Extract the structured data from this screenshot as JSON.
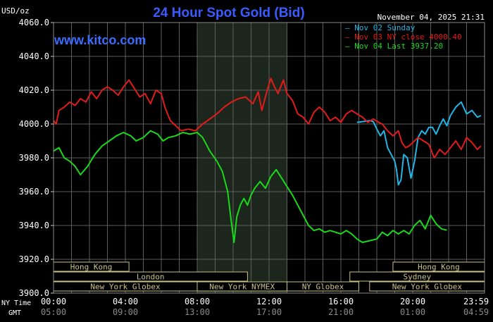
{
  "header": {
    "unit": "USD/oz",
    "title": "24 Hour Spot Gold (Bid)",
    "timestamp": "November 04, 2025 21:31",
    "watermark": "www.kitco.com"
  },
  "colors": {
    "background": "#000000",
    "grid": "#6a6a6a",
    "title": "#3a5cff",
    "watermark": "#3a6cff",
    "sunday": "#21b6e8",
    "ny_close": "#e21b1b",
    "last": "#19d91a",
    "session_fill": "#1f2a1f",
    "market_box_fill": "#c9c389",
    "market_box_text": "#000000"
  },
  "legend": [
    {
      "label": "Nov 02 Sunday",
      "color": "#21b6e8"
    },
    {
      "label": "Nov 03 NY close 4000.40",
      "color": "#e21b1b"
    },
    {
      "label": "Nov 04 Last 3937.20",
      "color": "#19d91a"
    }
  ],
  "row_labels": {
    "ny": "NY Time",
    "gmt": "GMT"
  },
  "x_ticks_ny": [
    "00:00",
    "04:00",
    "08:00",
    "12:00",
    "16:00",
    "20:00",
    "23:59"
  ],
  "x_ticks_gmt": [
    "05:00",
    "09:00",
    "13:00",
    "17:00",
    "21:00",
    "01:00",
    "04:59"
  ],
  "markets": [
    {
      "label": "Hong Kong",
      "start": 0,
      "end": 4.2,
      "row": 0
    },
    {
      "label": "Hong Kong",
      "start": 18.9,
      "end": 24,
      "row": 0
    },
    {
      "label": "London",
      "start": 0,
      "end": 10.8,
      "row": 1
    },
    {
      "label": "Sydney",
      "start": 16.5,
      "end": 24,
      "row": 1
    },
    {
      "label": "New York Globex",
      "start": 0,
      "end": 8.0,
      "row": 2
    },
    {
      "label": "New York NYMEX",
      "start": 8.0,
      "end": 13.0,
      "row": 2
    },
    {
      "label": "NY Globex",
      "start": 13.0,
      "end": 17.0,
      "row": 2
    },
    {
      "label": "New York Globex",
      "start": 17.6,
      "end": 24,
      "row": 2
    }
  ],
  "chart_data": {
    "type": "line",
    "ylabel": "USD/oz",
    "ylim": [
      3900,
      4060
    ],
    "xlim": [
      0,
      24
    ],
    "y_ticks": [
      "4060.0",
      "4040.0",
      "4020.0",
      "4000.0",
      "3980.0",
      "3960.0",
      "3940.0",
      "3920.0",
      "3900.0"
    ],
    "shaded_session_hours": [
      8.0,
      13.0
    ],
    "grid": true,
    "series": [
      {
        "name": "Nov 02 Sunday",
        "color": "#21b6e8",
        "points": [
          [
            16.9,
            4001.0
          ],
          [
            17.6,
            4002.0
          ],
          [
            17.8,
            4001.5
          ],
          [
            18.0,
            3997.0
          ],
          [
            18.2,
            3993.0
          ],
          [
            18.4,
            3996.0
          ],
          [
            18.6,
            3986.0
          ],
          [
            18.8,
            3982.0
          ],
          [
            19.0,
            3978.0
          ],
          [
            19.1,
            3973.0
          ],
          [
            19.2,
            3964.0
          ],
          [
            19.35,
            3967.0
          ],
          [
            19.5,
            3982.0
          ],
          [
            19.7,
            3980.0
          ],
          [
            19.9,
            3968.0
          ],
          [
            20.1,
            3978.0
          ],
          [
            20.3,
            3992.0
          ],
          [
            20.5,
            3996.0
          ],
          [
            20.7,
            3994.0
          ],
          [
            20.9,
            3998.0
          ],
          [
            21.1,
            3998.0
          ],
          [
            21.3,
            3994.0
          ],
          [
            21.5,
            3999.0
          ],
          [
            21.7,
            4003.0
          ],
          [
            21.9,
            3999.0
          ],
          [
            22.1,
            4005.0
          ],
          [
            22.4,
            4010.0
          ],
          [
            22.7,
            4013.0
          ],
          [
            23.0,
            4006.0
          ],
          [
            23.3,
            4008.0
          ],
          [
            23.6,
            4004.0
          ],
          [
            23.8,
            4005.0
          ]
        ]
      },
      {
        "name": "Nov 03 NY close 4000.40",
        "color": "#e21b1b",
        "points": [
          [
            0.0,
            4002.0
          ],
          [
            0.15,
            4000.0
          ],
          [
            0.3,
            4008.0
          ],
          [
            0.6,
            4010.0
          ],
          [
            0.9,
            4013.0
          ],
          [
            1.2,
            4011.0
          ],
          [
            1.5,
            4015.0
          ],
          [
            1.8,
            4013.0
          ],
          [
            2.1,
            4019.0
          ],
          [
            2.4,
            4015.0
          ],
          [
            2.7,
            4020.0
          ],
          [
            3.0,
            4022.0
          ],
          [
            3.3,
            4020.0
          ],
          [
            3.6,
            4017.0
          ],
          [
            3.9,
            4022.0
          ],
          [
            4.2,
            4026.0
          ],
          [
            4.5,
            4021.0
          ],
          [
            4.8,
            4016.0
          ],
          [
            5.1,
            4018.0
          ],
          [
            5.4,
            4012.0
          ],
          [
            5.7,
            4020.0
          ],
          [
            6.0,
            4018.0
          ],
          [
            6.2,
            4010.0
          ],
          [
            6.5,
            4002.0
          ],
          [
            6.8,
            3999.0
          ],
          [
            7.1,
            3996.0
          ],
          [
            7.5,
            3997.0
          ],
          [
            7.9,
            3996.0
          ],
          [
            8.3,
            4000.0
          ],
          [
            8.7,
            4003.0
          ],
          [
            9.1,
            4006.0
          ],
          [
            9.5,
            4010.0
          ],
          [
            9.9,
            4013.0
          ],
          [
            10.3,
            4015.0
          ],
          [
            10.7,
            4016.0
          ],
          [
            11.1,
            4012.0
          ],
          [
            11.4,
            4019.0
          ],
          [
            11.6,
            4008.0
          ],
          [
            11.9,
            4020.0
          ],
          [
            12.1,
            4027.0
          ],
          [
            12.3,
            4022.0
          ],
          [
            12.5,
            4018.0
          ],
          [
            12.8,
            4026.0
          ],
          [
            13.0,
            4018.0
          ],
          [
            13.3,
            4014.0
          ],
          [
            13.6,
            4006.0
          ],
          [
            13.9,
            4004.0
          ],
          [
            14.2,
            4000.0
          ],
          [
            14.5,
            4007.0
          ],
          [
            14.8,
            4010.0
          ],
          [
            15.1,
            4007.0
          ],
          [
            15.4,
            4002.0
          ],
          [
            15.7,
            4004.0
          ],
          [
            16.0,
            4001.0
          ],
          [
            16.3,
            4006.0
          ],
          [
            16.6,
            4008.0
          ],
          [
            16.9,
            4006.0
          ],
          [
            17.2,
            4004.0
          ],
          [
            17.5,
            4001.0
          ],
          [
            17.8,
            4003.0
          ],
          [
            18.1,
            4001.0
          ],
          [
            18.3,
            4000.0
          ],
          [
            18.6,
            3996.0
          ],
          [
            18.9,
            3993.0
          ],
          [
            19.2,
            3996.0
          ],
          [
            19.4,
            3989.0
          ],
          [
            19.6,
            3986.0
          ],
          [
            19.8,
            3987.0
          ],
          [
            20.0,
            3989.0
          ],
          [
            20.3,
            3992.0
          ],
          [
            20.6,
            3990.0
          ],
          [
            20.9,
            3988.0
          ],
          [
            21.2,
            3980.0
          ],
          [
            21.5,
            3985.0
          ],
          [
            21.8,
            3982.0
          ],
          [
            22.1,
            3986.0
          ],
          [
            22.4,
            3990.0
          ],
          [
            22.7,
            3985.0
          ],
          [
            23.0,
            3992.0
          ],
          [
            23.3,
            3989.0
          ],
          [
            23.6,
            3985.0
          ],
          [
            23.8,
            3987.0
          ]
        ]
      },
      {
        "name": "Nov 04 Last 3937.20",
        "color": "#19d91a",
        "points": [
          [
            0.0,
            3984.0
          ],
          [
            0.3,
            3986.0
          ],
          [
            0.6,
            3980.0
          ],
          [
            0.9,
            3978.0
          ],
          [
            1.2,
            3975.0
          ],
          [
            1.5,
            3970.0
          ],
          [
            1.9,
            3975.0
          ],
          [
            2.3,
            3982.0
          ],
          [
            2.7,
            3987.0
          ],
          [
            3.1,
            3990.0
          ],
          [
            3.5,
            3993.0
          ],
          [
            3.9,
            3995.0
          ],
          [
            4.3,
            3993.0
          ],
          [
            4.6,
            3990.0
          ],
          [
            5.0,
            3992.0
          ],
          [
            5.4,
            3996.0
          ],
          [
            5.8,
            3994.0
          ],
          [
            6.1,
            3990.0
          ],
          [
            6.4,
            3992.0
          ],
          [
            6.8,
            3993.0
          ],
          [
            7.2,
            3995.0
          ],
          [
            7.6,
            3994.0
          ],
          [
            8.0,
            3995.0
          ],
          [
            8.3,
            3992.0
          ],
          [
            8.7,
            3984.0
          ],
          [
            9.1,
            3978.0
          ],
          [
            9.4,
            3972.0
          ],
          [
            9.7,
            3960.0
          ],
          [
            9.9,
            3942.0
          ],
          [
            10.05,
            3930.0
          ],
          [
            10.2,
            3945.0
          ],
          [
            10.4,
            3952.0
          ],
          [
            10.6,
            3956.0
          ],
          [
            10.8,
            3952.0
          ],
          [
            11.0,
            3958.0
          ],
          [
            11.2,
            3962.0
          ],
          [
            11.5,
            3966.0
          ],
          [
            11.8,
            3962.0
          ],
          [
            12.1,
            3969.0
          ],
          [
            12.4,
            3973.0
          ],
          [
            12.7,
            3968.0
          ],
          [
            13.0,
            3963.0
          ],
          [
            13.3,
            3958.0
          ],
          [
            13.6,
            3952.0
          ],
          [
            13.9,
            3946.0
          ],
          [
            14.2,
            3940.0
          ],
          [
            14.5,
            3937.0
          ],
          [
            14.8,
            3938.0
          ],
          [
            15.1,
            3936.0
          ],
          [
            15.4,
            3937.0
          ],
          [
            15.7,
            3936.0
          ],
          [
            16.0,
            3935.0
          ],
          [
            16.3,
            3937.0
          ],
          [
            16.6,
            3935.0
          ],
          [
            16.9,
            3932.0
          ],
          [
            17.2,
            3930.0
          ],
          [
            17.6,
            3931.0
          ],
          [
            18.0,
            3932.0
          ],
          [
            18.3,
            3936.0
          ],
          [
            18.6,
            3934.0
          ],
          [
            18.9,
            3937.0
          ],
          [
            19.2,
            3935.0
          ],
          [
            19.5,
            3937.0
          ],
          [
            19.8,
            3935.0
          ],
          [
            20.1,
            3940.0
          ],
          [
            20.4,
            3943.0
          ],
          [
            20.7,
            3938.0
          ],
          [
            21.0,
            3946.0
          ],
          [
            21.3,
            3941.0
          ],
          [
            21.6,
            3938.0
          ],
          [
            21.9,
            3937.2
          ]
        ]
      }
    ]
  }
}
